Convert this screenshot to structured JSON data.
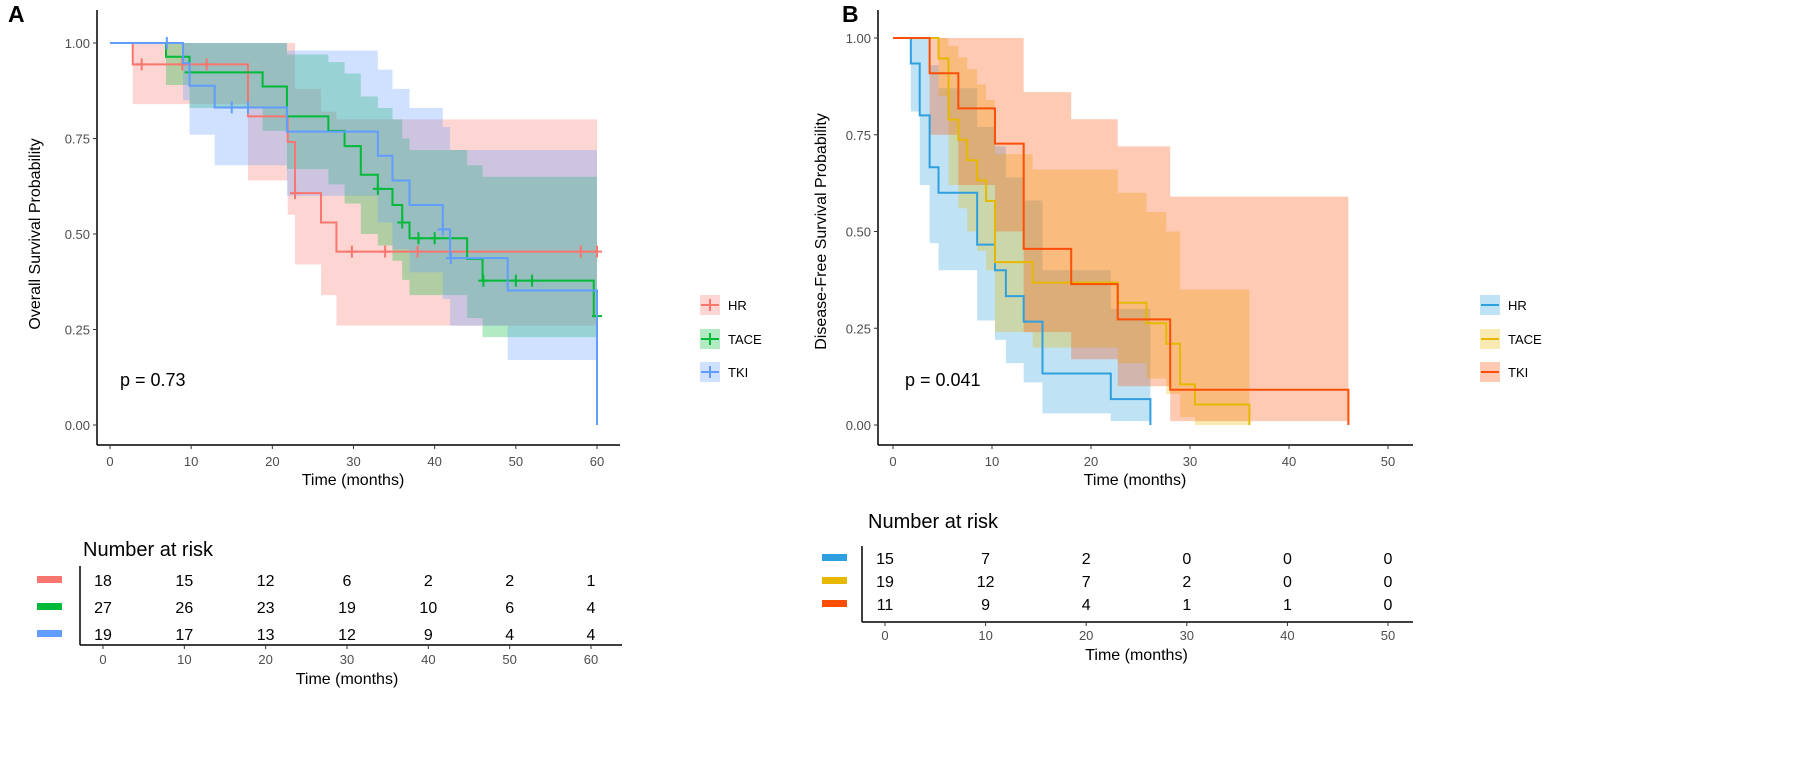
{
  "chart_data": [
    {
      "panel_label": "A",
      "type": "line",
      "xlabel": "Time (months)",
      "ylabel": "Overall Survival Probability",
      "xlim": [
        0,
        60
      ],
      "ylim": [
        0,
        1
      ],
      "xticks": [
        "0",
        "10",
        "20",
        "30",
        "40",
        "50",
        "60"
      ],
      "yticks": [
        "0.00",
        "0.25",
        "0.50",
        "0.75",
        "1.00"
      ],
      "grid": false,
      "legend_position": "right",
      "annotation": "p = 0.73",
      "series": [
        {
          "name": "HR",
          "color": "#F8766D",
          "time": [
            0,
            2.8,
            17,
            21.9,
            22.8,
            26,
            27.9
          ],
          "surv": [
            1,
            0.944,
            0.808,
            0.741,
            0.607,
            0.53,
            0.454
          ],
          "lower": [
            1,
            0.84,
            0.64,
            0.55,
            0.42,
            0.34,
            0.26
          ],
          "upper": [
            1,
            1,
            1,
            1,
            0.88,
            0.82,
            0.8
          ],
          "end": 60,
          "censored": [
            [
              3.9,
              0.944
            ],
            [
              8.9,
              0.944
            ],
            [
              11.9,
              0.944
            ],
            [
              22.8,
              0.607
            ],
            [
              29.8,
              0.454
            ],
            [
              33.9,
              0.454
            ],
            [
              37.9,
              0.454
            ],
            [
              58,
              0.454
            ],
            [
              60,
              0.454
            ]
          ]
        },
        {
          "name": "TACE",
          "color": "#00BA38",
          "time": [
            0,
            6.9,
            9.8,
            18.8,
            21.8,
            26.9,
            28.9,
            30.9,
            33,
            34.8,
            36,
            36.9,
            44,
            45.9,
            59.6
          ],
          "surv": [
            1,
            0.964,
            0.923,
            0.886,
            0.808,
            0.77,
            0.73,
            0.655,
            0.618,
            0.576,
            0.53,
            0.489,
            0.435,
            0.378,
            0.285
          ],
          "lower": [
            1,
            0.89,
            0.83,
            0.77,
            0.67,
            0.63,
            0.58,
            0.5,
            0.47,
            0.43,
            0.38,
            0.34,
            0.28,
            0.23,
            0.23
          ],
          "upper": [
            1,
            1,
            1,
            1,
            0.97,
            0.95,
            0.92,
            0.86,
            0.83,
            0.8,
            0.75,
            0.72,
            0.68,
            0.65,
            0.65
          ],
          "end": 60,
          "censored": [
            [
              9.8,
              0.923
            ],
            [
              33,
              0.618
            ],
            [
              36,
              0.53
            ],
            [
              38,
              0.489
            ],
            [
              40,
              0.489
            ],
            [
              46,
              0.378
            ],
            [
              50,
              0.378
            ],
            [
              52,
              0.378
            ],
            [
              60,
              0.285
            ]
          ]
        },
        {
          "name": "TKI",
          "color": "#619CFF",
          "time": [
            0,
            9,
            9.8,
            12.9,
            21.8,
            33,
            34.8,
            36.9,
            41,
            41.9,
            49,
            60
          ],
          "surv": [
            1,
            0.947,
            0.888,
            0.831,
            0.768,
            0.705,
            0.64,
            0.576,
            0.512,
            0.437,
            0.352,
            0
          ],
          "lower": [
            1,
            0.85,
            0.76,
            0.68,
            0.6,
            0.53,
            0.46,
            0.4,
            0.33,
            0.26,
            0.17,
            0
          ],
          "upper": [
            1,
            1,
            1,
            1,
            0.98,
            0.93,
            0.88,
            0.83,
            0.78,
            0.72,
            0.72,
            0
          ],
          "end": 60,
          "censored": [
            [
              7,
              1.0
            ],
            [
              15,
              0.831
            ],
            [
              17,
              0.831
            ],
            [
              41,
              0.512
            ],
            [
              42,
              0.437
            ]
          ]
        }
      ],
      "risk_table": {
        "title": "Number at risk",
        "xlabel": "Time (months)",
        "times": [
          "0",
          "10",
          "20",
          "30",
          "40",
          "50",
          "60"
        ],
        "rows": [
          {
            "series": "HR",
            "values": [
              "18",
              "15",
              "12",
              "6",
              "2",
              "2",
              "1"
            ]
          },
          {
            "series": "TACE",
            "values": [
              "27",
              "26",
              "23",
              "19",
              "10",
              "6",
              "4"
            ]
          },
          {
            "series": "TKI",
            "values": [
              "19",
              "17",
              "13",
              "12",
              "9",
              "4",
              "4"
            ]
          }
        ]
      }
    },
    {
      "panel_label": "B",
      "type": "line",
      "xlabel": "Time (months)",
      "ylabel": "Disease-Free Survival Probability",
      "xlim": [
        0,
        50
      ],
      "ylim": [
        0,
        1
      ],
      "xticks": [
        "0",
        "10",
        "20",
        "30",
        "40",
        "50"
      ],
      "yticks": [
        "0.00",
        "0.25",
        "0.50",
        "0.75",
        "1.00"
      ],
      "grid": false,
      "legend_position": "right",
      "annotation": "p = 0.041",
      "series": [
        {
          "name": "HR",
          "color": "#2E9FDF",
          "time": [
            0,
            1.8,
            2.7,
            3.7,
            4.6,
            8.5,
            10.3,
            11.4,
            13.2,
            15.1,
            22,
            26
          ],
          "surv": [
            1,
            0.934,
            0.8,
            0.666,
            0.6,
            0.466,
            0.4,
            0.333,
            0.267,
            0.133,
            0.067,
            0
          ],
          "lower": [
            1,
            0.81,
            0.62,
            0.47,
            0.4,
            0.27,
            0.22,
            0.16,
            0.11,
            0.03,
            0.01,
            0
          ],
          "upper": [
            1,
            1,
            1,
            0.93,
            0.87,
            0.77,
            0.72,
            0.64,
            0.58,
            0.4,
            0.3,
            0
          ],
          "end": 26,
          "censored": []
        },
        {
          "name": "TACE",
          "color": "#E7B800",
          "time": [
            0,
            4.6,
            5.6,
            6.6,
            7.5,
            8.5,
            9.4,
            10.3,
            14.1,
            22.7,
            25.6,
            27.6,
            29,
            30.5,
            36
          ],
          "surv": [
            1,
            0.947,
            0.789,
            0.737,
            0.684,
            0.632,
            0.579,
            0.421,
            0.368,
            0.316,
            0.263,
            0.21,
            0.105,
            0.053,
            0
          ],
          "lower": [
            1,
            0.85,
            0.62,
            0.56,
            0.5,
            0.45,
            0.4,
            0.24,
            0.2,
            0.16,
            0.12,
            0.08,
            0.02,
            0.0,
            0
          ],
          "upper": [
            1,
            1,
            0.98,
            0.95,
            0.92,
            0.88,
            0.84,
            0.7,
            0.66,
            0.6,
            0.55,
            0.5,
            0.35,
            0.35,
            0
          ],
          "end": 36,
          "censored": []
        },
        {
          "name": "TKI",
          "color": "#FC4E07",
          "time": [
            0,
            3.7,
            6.6,
            10.3,
            13.2,
            18,
            22.7,
            28,
            46
          ],
          "surv": [
            1,
            0.909,
            0.818,
            0.727,
            0.455,
            0.364,
            0.273,
            0.091,
            0
          ],
          "lower": [
            1,
            0.75,
            0.62,
            0.5,
            0.24,
            0.17,
            0.1,
            0.01,
            0
          ],
          "upper": [
            1,
            1,
            1,
            1,
            0.86,
            0.79,
            0.72,
            0.59,
            0
          ],
          "end": 46,
          "censored": []
        }
      ],
      "risk_table": {
        "title": "Number at risk",
        "xlabel": "Time (months)",
        "times": [
          "0",
          "10",
          "20",
          "30",
          "40",
          "50"
        ],
        "rows": [
          {
            "series": "HR",
            "values": [
              "15",
              "7",
              "2",
              "0",
              "0",
              "0"
            ]
          },
          {
            "series": "TACE",
            "values": [
              "19",
              "12",
              "7",
              "2",
              "0",
              "0"
            ]
          },
          {
            "series": "TKI",
            "values": [
              "11",
              "9",
              "4",
              "1",
              "1",
              "0"
            ]
          }
        ]
      }
    }
  ]
}
